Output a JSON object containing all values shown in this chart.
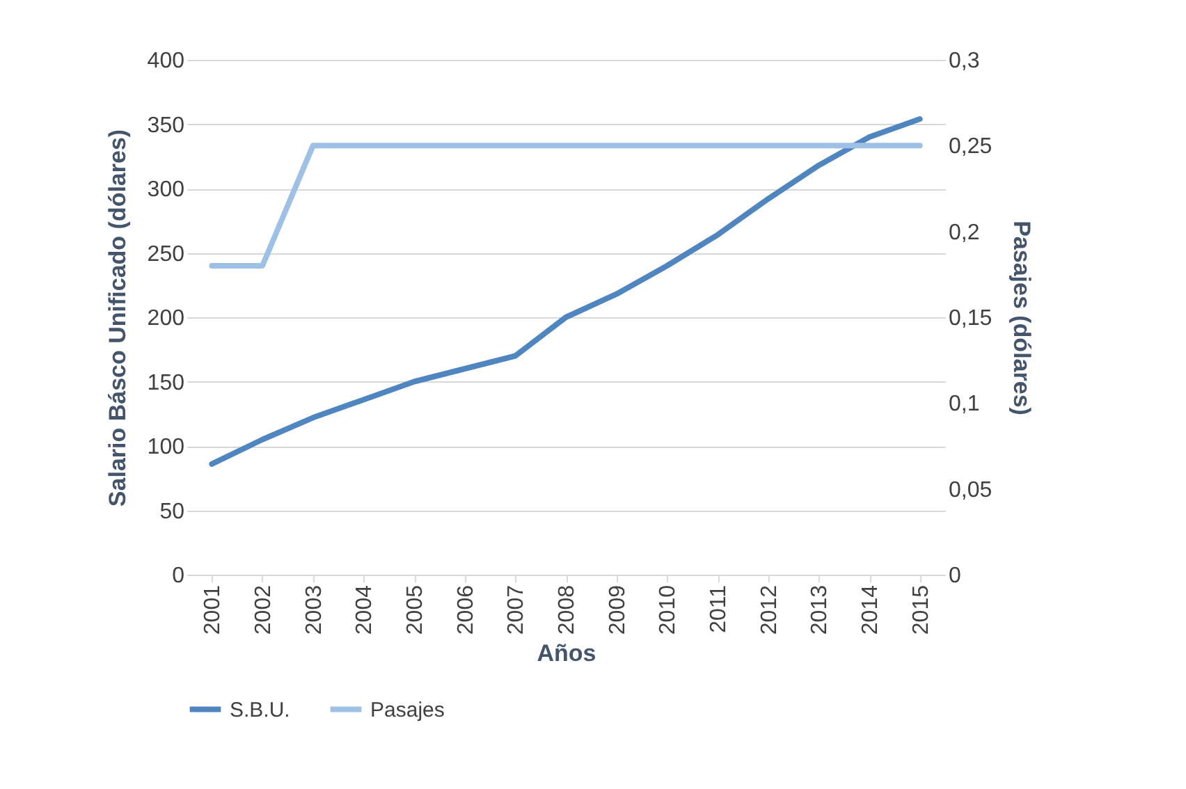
{
  "chart_data": {
    "type": "line",
    "xlabel": "Años",
    "ylabel": "Salario Básco Unificado (dólares)",
    "y2label": "Pasajes (dólares)",
    "categories": [
      "2001",
      "2002",
      "2003",
      "2004",
      "2005",
      "2006",
      "2007",
      "2008",
      "2009",
      "2010",
      "2011",
      "2012",
      "2013",
      "2014",
      "2015"
    ],
    "series": [
      {
        "name": "S.B.U.",
        "color": "#4f86c0",
        "values": [
          86,
          105,
          122,
          136,
          150,
          160,
          170,
          200,
          218,
          240,
          264,
          292,
          318,
          340,
          354
        ]
      },
      {
        "name": "Pasajes",
        "color": "#9dc0e4",
        "axis": "y2",
        "values": [
          0.18,
          0.18,
          0.25,
          0.25,
          0.25,
          0.25,
          0.25,
          0.25,
          0.25,
          0.25,
          0.25,
          0.25,
          0.25,
          0.25,
          0.25
        ]
      }
    ],
    "ylim": [
      0,
      400
    ],
    "yticks": [
      0,
      50,
      100,
      150,
      200,
      250,
      300,
      350,
      400
    ],
    "y2lim": [
      0,
      0.3
    ],
    "y2ticks": [
      {
        "value": 0,
        "label": "0"
      },
      {
        "value": 0.05,
        "label": "0,05"
      },
      {
        "value": 0.1,
        "label": "0,1"
      },
      {
        "value": 0.15,
        "label": "0,15"
      },
      {
        "value": 0.2,
        "label": "0,2"
      },
      {
        "value": 0.25,
        "label": "0,25"
      },
      {
        "value": 0.3,
        "label": "0,3"
      }
    ],
    "grid": "y",
    "legend": "bottom",
    "marker": "none",
    "line_style": "solid"
  }
}
